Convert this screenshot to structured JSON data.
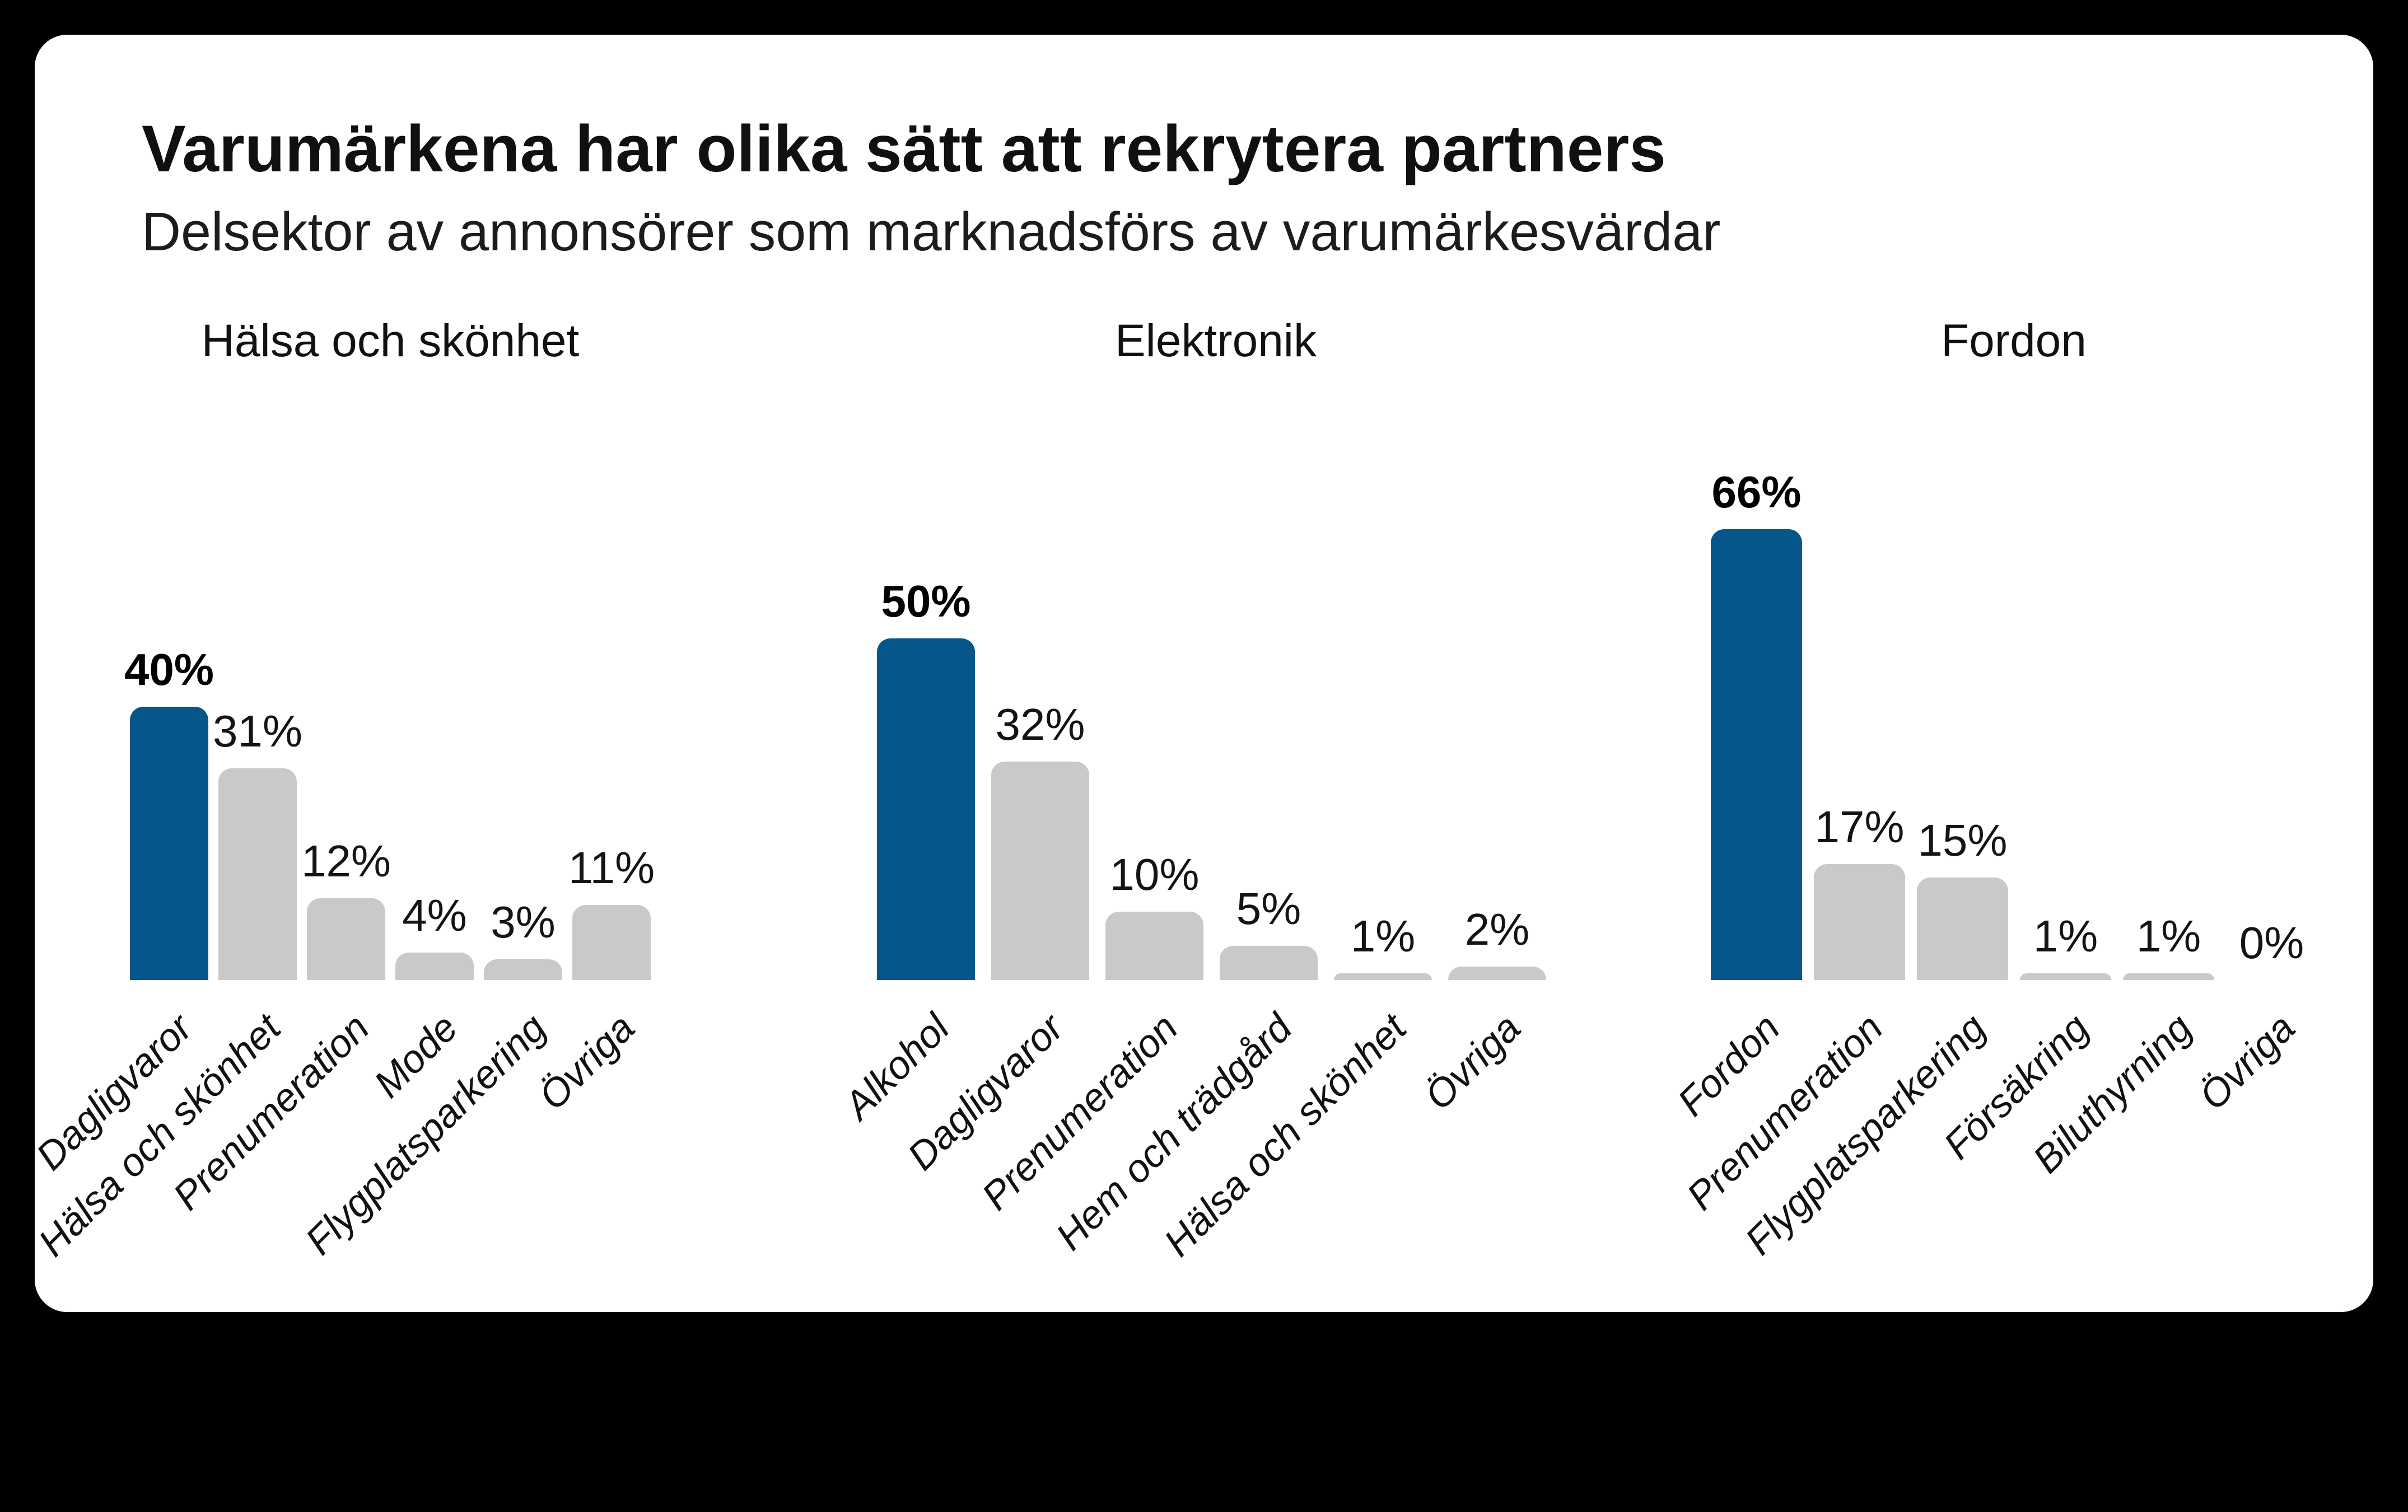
{
  "header": {
    "title": "Varumärkena har olika sätt att rekrytera partners",
    "subtitle": "Delsektor av annonsörer som marknadsförs av varumärkesvärdar"
  },
  "colors": {
    "page_background": "#000000",
    "card_background": "#ffffff",
    "highlight_bar": "#05568B",
    "default_bar": "#C9C9C9",
    "text": "#111111"
  },
  "chart_data": [
    {
      "type": "bar",
      "title": "Hälsa och skönhet",
      "unit": "%",
      "categories": [
        "Dagligvaror",
        "Hälsa och skönhet",
        "Prenumeration",
        "Mode",
        "Flygplatsparkering",
        "Övriga"
      ],
      "values": [
        40,
        31,
        12,
        4,
        3,
        11
      ],
      "value_labels": [
        "40%",
        "31%",
        "12%",
        "4%",
        "3%",
        "11%"
      ],
      "highlight_index": 0,
      "legend": "none",
      "grid": false,
      "ylim": [
        0,
        70
      ]
    },
    {
      "type": "bar",
      "title": "Elektronik",
      "unit": "%",
      "categories": [
        "Alkohol",
        "Dagligvaror",
        "Prenumeration",
        "Hem och trädgård",
        "Hälsa och skönhet",
        "Övriga"
      ],
      "values": [
        50,
        32,
        10,
        5,
        1,
        2
      ],
      "value_labels": [
        "50%",
        "32%",
        "10%",
        "5%",
        "1%",
        "2%"
      ],
      "highlight_index": 0,
      "legend": "none",
      "grid": false,
      "ylim": [
        0,
        70
      ]
    },
    {
      "type": "bar",
      "title": "Fordon",
      "unit": "%",
      "categories": [
        "Fordon",
        "Prenumeration",
        "Flygplatsparkering",
        "Försäkring",
        "Biluthyrning",
        "Övriga"
      ],
      "values": [
        66,
        17,
        15,
        1,
        1,
        0
      ],
      "value_labels": [
        "66%",
        "17%",
        "15%",
        "1%",
        "1%",
        "0%"
      ],
      "highlight_index": 0,
      "legend": "none",
      "grid": false,
      "ylim": [
        0,
        70
      ]
    }
  ]
}
